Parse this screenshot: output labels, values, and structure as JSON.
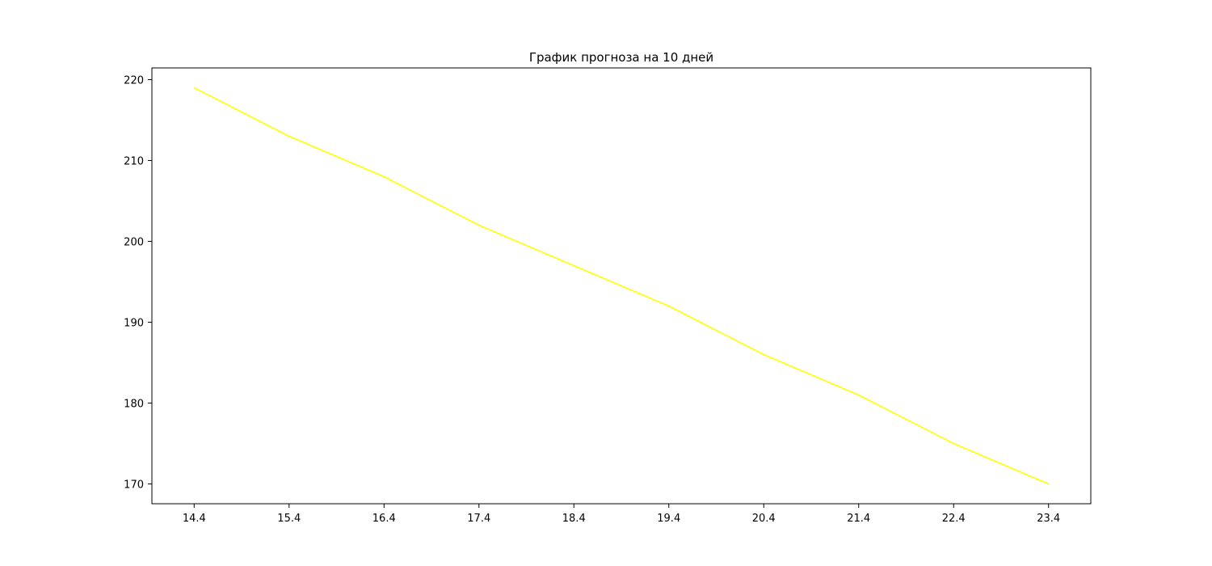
{
  "chart_data": {
    "type": "line",
    "title": "График прогноза на 10 дней",
    "xlabel": "",
    "ylabel": "",
    "categories": [
      "14.4",
      "15.4",
      "16.4",
      "17.4",
      "18.4",
      "19.4",
      "20.4",
      "21.4",
      "22.4",
      "23.4"
    ],
    "series": [
      {
        "values": [
          219,
          213,
          208,
          202,
          197,
          192,
          186,
          181,
          175,
          170
        ],
        "color": "#ffff00"
      }
    ],
    "y_ticks": [
      "170",
      "180",
      "190",
      "200",
      "210",
      "220"
    ],
    "ylim": [
      167.55,
      221.45
    ],
    "grid": false,
    "legend": "none"
  }
}
